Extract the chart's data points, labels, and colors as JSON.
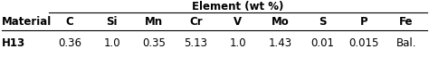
{
  "title": "Element (wt %)",
  "material_label": "Material",
  "col_headers": [
    "C",
    "Si",
    "Mn",
    "Cr",
    "V",
    "Mo",
    "S",
    "P",
    "Fe"
  ],
  "row_label": "H13",
  "row_values": [
    "0.36",
    "1.0",
    "0.35",
    "5.13",
    "1.0",
    "1.43",
    "0.01",
    "0.015",
    "Bal."
  ],
  "background_color": "#ffffff",
  "text_color": "#000000",
  "font_size": 8.5,
  "title_font_size": 8.5,
  "figwidth": 4.74,
  "figheight": 0.64,
  "dpi": 100
}
